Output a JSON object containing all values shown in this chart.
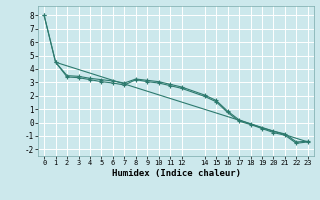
{
  "title": "",
  "xlabel": "Humidex (Indice chaleur)",
  "background_color": "#cce8ec",
  "grid_color": "#ffffff",
  "line_color": "#2d7a6e",
  "xlim": [
    -0.5,
    23.5
  ],
  "ylim": [
    -2.5,
    8.7
  ],
  "xticks": [
    0,
    1,
    2,
    3,
    4,
    5,
    6,
    7,
    8,
    9,
    10,
    11,
    12,
    14,
    15,
    16,
    17,
    18,
    19,
    20,
    21,
    22,
    23
  ],
  "yticks": [
    -2,
    -1,
    0,
    1,
    2,
    3,
    4,
    5,
    6,
    7,
    8
  ],
  "line1_x": [
    0,
    1,
    2,
    3,
    4,
    5,
    6,
    7,
    8,
    9,
    10,
    11,
    12,
    14,
    15,
    16,
    17,
    18,
    19,
    20,
    21,
    22,
    23
  ],
  "line1_y": [
    8.0,
    4.5,
    3.5,
    3.45,
    3.3,
    3.2,
    3.1,
    2.95,
    3.25,
    3.15,
    3.05,
    2.85,
    2.65,
    2.05,
    1.65,
    0.85,
    0.2,
    -0.1,
    -0.4,
    -0.65,
    -0.85,
    -1.45,
    -1.4
  ],
  "line2_x": [
    0,
    1,
    2,
    3,
    4,
    5,
    6,
    7,
    8,
    9,
    10,
    11,
    12,
    14,
    15,
    16,
    17,
    18,
    19,
    20,
    21,
    22,
    23
  ],
  "line2_y": [
    8.0,
    4.5,
    3.4,
    3.35,
    3.2,
    3.05,
    2.95,
    2.8,
    3.2,
    3.05,
    2.95,
    2.75,
    2.55,
    1.95,
    1.55,
    0.75,
    0.1,
    -0.15,
    -0.45,
    -0.75,
    -0.95,
    -1.55,
    -1.45
  ],
  "line3_x": [
    1,
    23
  ],
  "line3_y": [
    4.5,
    -1.45
  ]
}
